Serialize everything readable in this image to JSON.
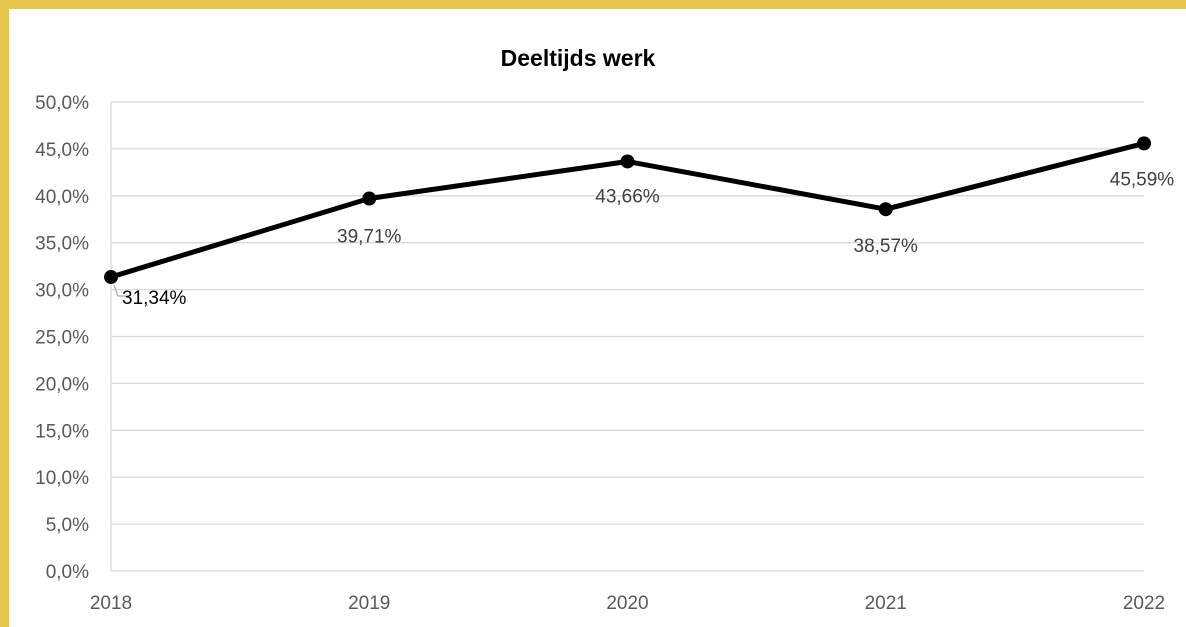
{
  "chart_data": {
    "type": "line",
    "title": "Deeltijds werk",
    "xlabel": "",
    "ylabel": "",
    "categories": [
      "2018",
      "2019",
      "2020",
      "2021",
      "2022"
    ],
    "series": [
      {
        "values": [
          31.34,
          39.71,
          43.66,
          38.57,
          45.59
        ],
        "labels": [
          "31,34%",
          "39,71%",
          "43,66%",
          "38,57%",
          "45,59%"
        ],
        "color": "#000000"
      }
    ],
    "ylim": [
      0,
      50
    ],
    "y_ticks": [
      "0,0%",
      "5,0%",
      "10,0%",
      "15,0%",
      "20,0%",
      "25,0%",
      "30,0%",
      "35,0%",
      "40,0%",
      "45,0%",
      "50,0%"
    ],
    "grid": "horizontal",
    "legend": "none"
  },
  "colors": {
    "frame": "#e8c54d",
    "gridline": "#d9d9d9",
    "axis_text": "#595959"
  }
}
